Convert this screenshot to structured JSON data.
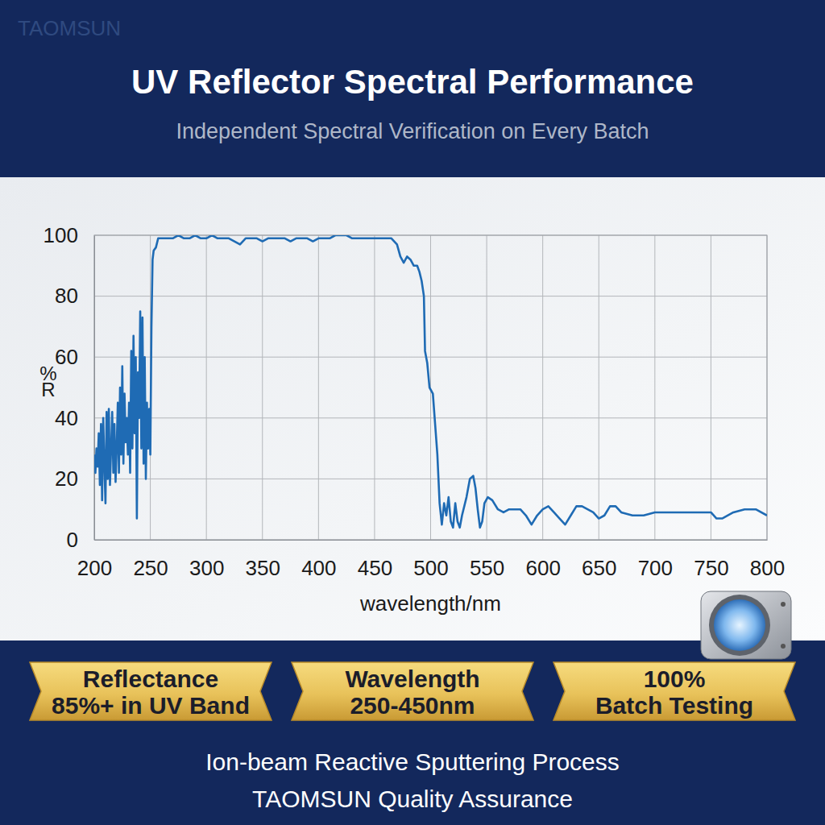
{
  "watermark": "TAOMSUN",
  "chart_data": {
    "type": "line",
    "title": "UV Reflector Spectral Performance",
    "subtitle": "Independent Spectral Verification on Every Batch",
    "xlabel": "wavelength/nm",
    "ylabel": "%R",
    "color": "#1f6bb4",
    "grid": true,
    "xlim": [
      200,
      800
    ],
    "ylim": [
      0,
      100
    ],
    "xticks": [
      200,
      250,
      300,
      350,
      400,
      450,
      500,
      550,
      600,
      650,
      700,
      750,
      800
    ],
    "yticks": [
      0,
      20,
      40,
      60,
      80,
      100
    ],
    "x": [
      200,
      201,
      202,
      203,
      204,
      205,
      206,
      207,
      208,
      209,
      210,
      211,
      212,
      213,
      214,
      215,
      216,
      217,
      218,
      219,
      220,
      221,
      222,
      223,
      224,
      225,
      226,
      227,
      228,
      229,
      230,
      231,
      232,
      233,
      234,
      235,
      236,
      237,
      238,
      239,
      240,
      241,
      242,
      243,
      244,
      245,
      246,
      247,
      248,
      249,
      250,
      251,
      252,
      253,
      255,
      257,
      260,
      265,
      270,
      275,
      280,
      285,
      290,
      295,
      300,
      305,
      310,
      315,
      320,
      325,
      330,
      335,
      340,
      345,
      350,
      355,
      360,
      365,
      370,
      375,
      380,
      385,
      390,
      395,
      400,
      405,
      410,
      415,
      420,
      425,
      430,
      435,
      440,
      445,
      450,
      455,
      460,
      465,
      470,
      473,
      476,
      479,
      482,
      485,
      488,
      490,
      492,
      494,
      495,
      497,
      499,
      502,
      504,
      506,
      508,
      510,
      512,
      514,
      516,
      518,
      520,
      522,
      524,
      526,
      528,
      532,
      535,
      538,
      540,
      542,
      544,
      546,
      548,
      551,
      555,
      560,
      565,
      570,
      575,
      580,
      585,
      590,
      595,
      600,
      605,
      610,
      615,
      620,
      625,
      630,
      635,
      640,
      645,
      650,
      655,
      660,
      665,
      670,
      680,
      690,
      700,
      710,
      720,
      730,
      740,
      750,
      755,
      760,
      770,
      780,
      790,
      800
    ],
    "values": [
      28,
      22,
      30,
      24,
      35,
      18,
      38,
      13,
      40,
      25,
      12,
      42,
      20,
      43,
      18,
      30,
      42,
      22,
      38,
      19,
      30,
      45,
      22,
      50,
      28,
      57,
      25,
      48,
      32,
      40,
      28,
      45,
      22,
      62,
      30,
      67,
      35,
      60,
      7,
      55,
      40,
      75,
      30,
      73,
      25,
      60,
      20,
      45,
      30,
      43,
      28,
      70,
      92,
      95,
      96,
      99,
      99,
      99,
      99,
      100,
      99,
      99,
      100,
      99,
      99,
      100,
      99,
      99,
      99,
      98,
      97,
      99,
      99,
      99,
      98,
      99,
      99,
      99,
      99,
      98,
      99,
      99,
      99,
      98,
      99,
      99,
      99,
      100,
      100,
      100,
      99,
      99,
      99,
      99,
      99,
      99,
      99,
      99,
      97,
      93,
      91,
      93,
      92,
      90,
      90,
      88,
      85,
      80,
      62,
      58,
      50,
      48,
      38,
      28,
      12,
      5,
      12,
      8,
      14,
      6,
      4,
      12,
      6,
      4,
      8,
      14,
      20,
      21,
      17,
      10,
      4,
      6,
      12,
      14,
      13,
      10,
      9,
      10,
      10,
      10,
      8,
      5,
      8,
      10,
      11,
      9,
      7,
      5,
      8,
      11,
      11,
      10,
      9,
      7,
      8,
      11,
      11,
      9,
      8,
      8,
      9,
      9,
      9,
      9,
      9,
      9,
      7,
      7,
      9,
      10,
      10,
      8
    ]
  },
  "badges": [
    [
      "Reflectance",
      "85%+ in UV Band"
    ],
    [
      "Wavelength",
      "250-450nm"
    ],
    [
      "100%",
      "Batch Testing"
    ]
  ],
  "footer": [
    "Ion-beam Reactive Sputtering Process",
    "TAOMSUN Quality Assurance"
  ]
}
